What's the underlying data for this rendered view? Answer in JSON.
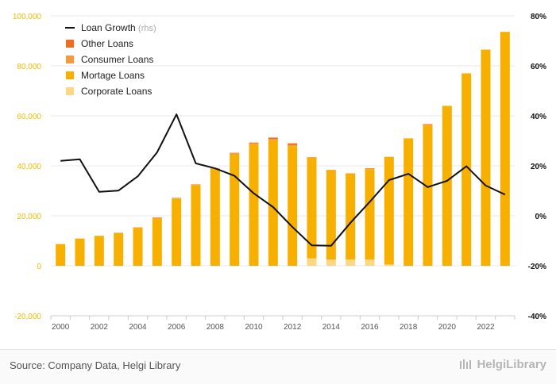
{
  "chart_data": {
    "type": "bar",
    "stacked": true,
    "categories": [
      "2000",
      "2001",
      "2002",
      "2003",
      "2004",
      "2005",
      "2006",
      "2007",
      "2008",
      "2009",
      "2010",
      "2011",
      "2012",
      "2013",
      "2014",
      "2015",
      "2016",
      "2017",
      "2018",
      "2019",
      "2020",
      "2021",
      "2022",
      "2023"
    ],
    "x_tick_labels": [
      "2000",
      "2002",
      "2004",
      "2006",
      "2008",
      "2010",
      "2012",
      "2014",
      "2016",
      "2018",
      "2020",
      "2022"
    ],
    "series": [
      {
        "name": "Corporate Loans",
        "color": "#fdd783",
        "values": [
          0,
          0,
          0,
          0,
          0,
          0,
          0,
          0,
          0,
          0,
          0,
          0,
          0,
          3000,
          2500,
          2500,
          2500,
          500,
          0,
          0,
          0,
          0,
          0,
          0
        ]
      },
      {
        "name": "Mortage Loans",
        "color": "#f7b000",
        "values": [
          8700,
          10900,
          12000,
          13100,
          15200,
          18900,
          26900,
          32300,
          38800,
          44600,
          48600,
          50200,
          47900,
          40300,
          35700,
          34400,
          36200,
          43100,
          51000,
          56300,
          64000,
          77000,
          86500,
          93600
        ]
      },
      {
        "name": "Consumer Loans",
        "color": "#f79a3e",
        "values": [
          0,
          0,
          0,
          100,
          200,
          300,
          300,
          300,
          300,
          400,
          400,
          500,
          400,
          200,
          200,
          100,
          200,
          0,
          0,
          200,
          0,
          0,
          0,
          0
        ]
      },
      {
        "name": "Other Loans",
        "color": "#f26b21",
        "values": [
          0,
          0,
          0,
          0,
          0,
          100,
          0,
          0,
          0,
          200,
          300,
          600,
          700,
          0,
          0,
          0,
          100,
          0,
          0,
          200,
          0,
          0,
          0,
          0
        ]
      }
    ],
    "line_series": {
      "name": "Loan Growth",
      "axis_note": "(rhs)",
      "color": "#111111",
      "values": [
        22,
        22.6,
        9.6,
        10.1,
        15.8,
        25.4,
        40.6,
        21,
        19,
        16,
        9,
        3.5,
        -4.5,
        -11.8,
        -12,
        -2.8,
        5.6,
        14.3,
        16.8,
        11.5,
        14,
        19.8,
        12.1,
        8.5
      ]
    },
    "left_axis": {
      "min": -20000,
      "max": 100000,
      "step": 20000,
      "tick_labels": [
        "-20,000",
        "0",
        "20,000",
        "40,000",
        "60,000",
        "80,000",
        "100,000"
      ]
    },
    "right_axis": {
      "min": -40,
      "max": 80,
      "step": 20,
      "tick_labels": [
        "-40%",
        "-20%",
        "0%",
        "20%",
        "40%",
        "60%",
        "80%"
      ]
    },
    "legend_position": "top-left"
  },
  "footer": {
    "source": "Source: Company Data, Helgi Library",
    "brand": "HelgiLibrary"
  }
}
